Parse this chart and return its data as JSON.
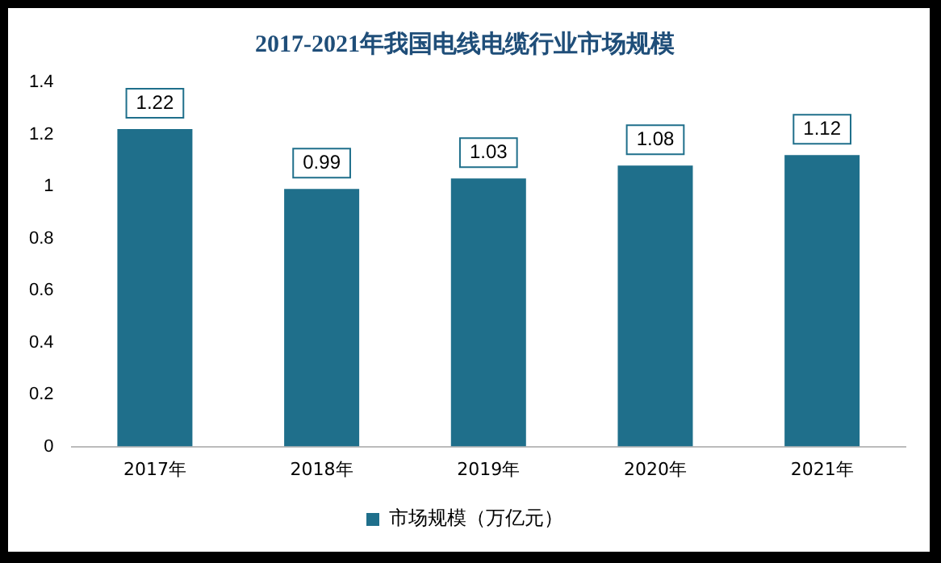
{
  "chart_data": {
    "type": "bar",
    "title": "2017-2021年我国电线电缆行业市场规模",
    "categories": [
      "2017年",
      "2018年",
      "2019年",
      "2020年",
      "2021年"
    ],
    "series": [
      {
        "name": "市场规模（万亿元）",
        "color": "#1f6f8b",
        "values": [
          1.22,
          0.99,
          1.03,
          1.08,
          1.12
        ]
      }
    ],
    "ylim": [
      0,
      1.4
    ],
    "yticks": [
      0,
      0.2,
      0.4,
      0.6,
      0.8,
      1,
      1.2,
      1.4
    ],
    "grid": false,
    "legend": "bottom",
    "data_labels": true
  }
}
